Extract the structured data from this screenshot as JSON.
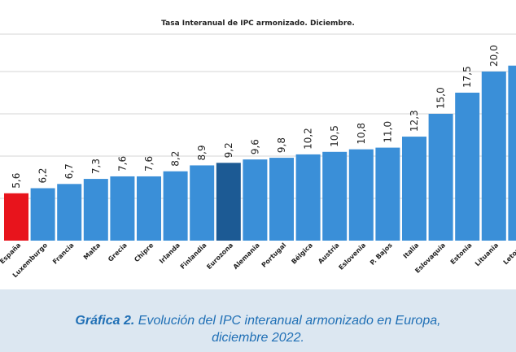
{
  "chart_data": {
    "type": "bar",
    "title": "Tasa Interanual de IPC armonizado. Diciembre.",
    "categories": [
      "España",
      "Luxemburgo",
      "Francia",
      "Malta",
      "Grecia",
      "Chipre",
      "Irlanda",
      "Finlandia",
      "Eurozona",
      "Alemania",
      "Portugal",
      "Bélgica",
      "Austria",
      "Eslovenia",
      "P. Bajos",
      "Italia",
      "Eslovaquia",
      "Estonia",
      "Lituania",
      "Letonia"
    ],
    "values": [
      5.6,
      6.2,
      6.7,
      7.3,
      7.6,
      7.6,
      8.2,
      8.9,
      9.2,
      9.6,
      9.8,
      10.2,
      10.5,
      10.8,
      11.0,
      12.3,
      15.0,
      17.5,
      20.0,
      20.7
    ],
    "value_labels": [
      "5,6",
      "6,2",
      "6,7",
      "7,3",
      "7,6",
      "7,6",
      "8,2",
      "8,9",
      "9,2",
      "9,6",
      "9,8",
      "10,2",
      "10,5",
      "10,8",
      "11,0",
      "12,3",
      "15,0",
      "17,5",
      "20,0",
      ""
    ],
    "ylim": [
      0,
      22
    ],
    "grid": true,
    "colors": {
      "default": "#3a8fd8",
      "highlight_spain": "#e8141c",
      "highlight_eurozone": "#1c5a94",
      "grid": "#d6d6d6",
      "label": "#222222"
    },
    "highlight": {
      "España": "highlight_spain",
      "Eurozona": "highlight_eurozone"
    }
  },
  "caption": {
    "prefix": "Gráfica 2.",
    "line1": " Evolución del IPC interanual armonizado en Europa,",
    "line2": "diciembre 2022."
  }
}
